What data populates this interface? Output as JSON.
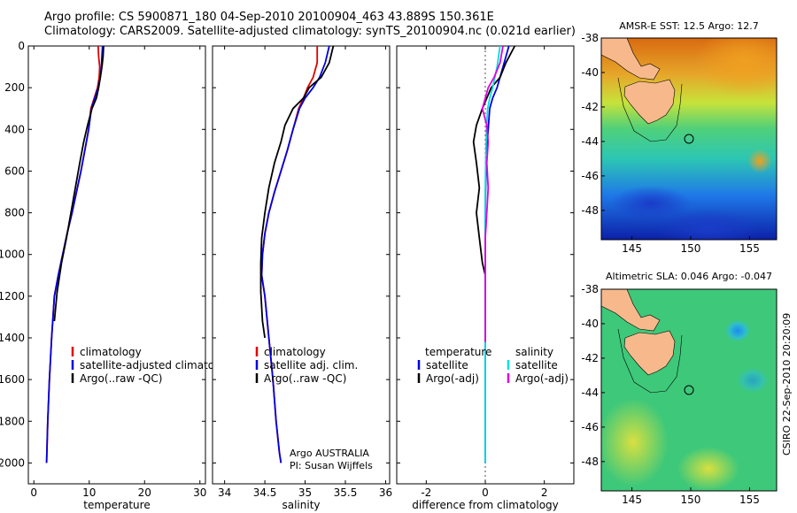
{
  "header": {
    "line1": "Argo profile: CS 5900871_180 04-Sep-2010 20100904_463 43.889S 150.361E",
    "line2": "Climatology: CARS2009. Satellite-adjusted climatology: synTS_20100904.nc (0.021d earlier)"
  },
  "chart_data": [
    {
      "type": "line",
      "panel": "temperature",
      "xlabel": "temperature",
      "ylabel": "",
      "xlim": [
        -1,
        31
      ],
      "ylim": [
        2100,
        0
      ],
      "xticks": [
        0,
        10,
        20,
        30
      ],
      "yticks": [
        0,
        200,
        400,
        600,
        800,
        1000,
        1200,
        1400,
        1600,
        1800,
        2000
      ],
      "legend": [
        "climatology",
        "satellite-adjusted climatology",
        "Argo(..raw -QC)"
      ],
      "series": [
        {
          "name": "climatology",
          "color": "#e00000",
          "x": [
            11.6,
            11.7,
            11.9,
            11.8,
            11.5,
            10.9,
            10.3,
            9.9,
            9.2,
            8.5,
            7.7,
            6.9,
            6.0,
            5.2,
            4.4,
            3.7,
            3.2,
            2.8,
            2.5,
            2.3
          ],
          "y": [
            0,
            50,
            100,
            150,
            200,
            250,
            300,
            400,
            500,
            600,
            700,
            800,
            900,
            1000,
            1100,
            1200,
            1400,
            1600,
            1800,
            2000
          ]
        },
        {
          "name": "satellite-adjusted climatology",
          "color": "#0000e0",
          "x": [
            12.4,
            12.3,
            12.2,
            12.0,
            11.6,
            11.0,
            10.4,
            9.9,
            9.2,
            8.5,
            7.7,
            6.9,
            6.0,
            5.2,
            4.4,
            3.7,
            3.2,
            2.8,
            2.5,
            2.3
          ],
          "y": [
            0,
            50,
            100,
            150,
            200,
            250,
            300,
            400,
            500,
            600,
            700,
            800,
            900,
            1000,
            1100,
            1200,
            1400,
            1600,
            1800,
            2000
          ]
        },
        {
          "name": "Argo(..raw -QC)",
          "color": "#000000",
          "x": [
            12.6,
            12.5,
            12.3,
            12.0,
            11.7,
            11.3,
            10.5,
            9.7,
            9.0,
            8.3,
            7.5,
            6.7,
            5.9,
            5.0,
            4.2,
            3.7
          ],
          "y": [
            0,
            50,
            100,
            150,
            200,
            250,
            300,
            380,
            460,
            560,
            680,
            800,
            920,
            1040,
            1180,
            1320
          ]
        }
      ]
    },
    {
      "type": "line",
      "panel": "salinity",
      "xlabel": "salinity",
      "ylabel": "",
      "xlim": [
        33.85,
        36.05
      ],
      "ylim": [
        2100,
        0
      ],
      "xticks": [
        34,
        34.5,
        35,
        35.5,
        36
      ],
      "xticklabels": [
        "34",
        "34.5",
        "35",
        "35.5",
        "36"
      ],
      "legend": [
        "climatology",
        "satellite adj. clim.",
        "Argo(..raw -QC)"
      ],
      "annotation": [
        "Argo AUSTRALIA",
        "PI: Susan Wijffels"
      ],
      "series": [
        {
          "name": "climatology",
          "color": "#e00000",
          "x": [
            35.15,
            35.15,
            35.1,
            35.03,
            34.98,
            34.92,
            34.85,
            34.78,
            34.7,
            34.62,
            34.55,
            34.5,
            34.47,
            34.46,
            34.5,
            34.55,
            34.6,
            34.64,
            34.68,
            34.7
          ],
          "y": [
            0,
            80,
            150,
            200,
            250,
            300,
            400,
            500,
            600,
            700,
            800,
            900,
            1000,
            1100,
            1200,
            1400,
            1600,
            1800,
            1950,
            2000
          ]
        },
        {
          "name": "satellite adj. clim.",
          "color": "#0000e0",
          "x": [
            35.3,
            35.25,
            35.18,
            35.1,
            35.0,
            34.93,
            34.85,
            34.78,
            34.7,
            34.62,
            34.55,
            34.5,
            34.47,
            34.46,
            34.5,
            34.55,
            34.6,
            34.64,
            34.68,
            34.7
          ],
          "y": [
            0,
            80,
            150,
            200,
            250,
            300,
            400,
            500,
            600,
            700,
            800,
            900,
            1000,
            1100,
            1200,
            1400,
            1600,
            1800,
            1950,
            2000
          ]
        },
        {
          "name": "Argo(..raw -QC)",
          "color": "#000000",
          "x": [
            35.35,
            35.3,
            35.2,
            35.05,
            34.98,
            34.85,
            34.75,
            34.7,
            34.62,
            34.55,
            34.5,
            34.46,
            34.45,
            34.45,
            34.47,
            34.5
          ],
          "y": [
            0,
            80,
            150,
            200,
            250,
            300,
            380,
            460,
            560,
            680,
            800,
            920,
            1040,
            1180,
            1320,
            1400
          ]
        }
      ]
    },
    {
      "type": "line",
      "panel": "difference",
      "xlabel": "difference from climatology",
      "ylabel": "",
      "xlim": [
        -3,
        3
      ],
      "ylim": [
        2100,
        0
      ],
      "xticks": [
        -2,
        0,
        2
      ],
      "legend_left_title": "temperature",
      "legend_right_title": "salinity",
      "legend_left": [
        "satellite",
        "Argo(-adj)"
      ],
      "legend_right": [
        "satellite",
        "Argo(-adj)"
      ],
      "series": [
        {
          "name": "temperature satellite",
          "color": "#0000e0",
          "x": [
            0.8,
            0.6,
            0.4,
            0.25,
            0.15,
            0.1,
            0.05,
            0.02,
            0.01,
            0.0,
            0.0,
            0.0,
            0.0,
            0.0,
            0.0,
            0.0,
            0.0,
            0.0,
            0.0
          ],
          "y": [
            0,
            100,
            200,
            250,
            300,
            400,
            500,
            600,
            700,
            800,
            900,
            1000,
            1100,
            1200,
            1400,
            1600,
            1800,
            1950,
            2000
          ]
        },
        {
          "name": "temperature Argo(-adj)",
          "color": "#000000",
          "x": [
            1.0,
            0.7,
            0.5,
            0.2,
            -0.1,
            -0.3,
            -0.4,
            -0.3,
            -0.2,
            -0.3,
            -0.2,
            -0.1,
            0.0
          ],
          "y": [
            0,
            80,
            150,
            200,
            300,
            380,
            460,
            560,
            680,
            800,
            920,
            1040,
            1100
          ]
        },
        {
          "name": "salinity satellite",
          "color": "#00e0e0",
          "x": [
            0.5,
            0.4,
            0.25,
            0.15,
            0.08,
            0.04,
            0.02,
            0.01,
            0.0,
            0.0,
            0.0,
            0.0,
            0.0,
            0.0,
            0.0,
            0.0,
            0.0,
            0.0
          ],
          "y": [
            0,
            100,
            200,
            250,
            300,
            400,
            500,
            600,
            700,
            800,
            900,
            1000,
            1100,
            1200,
            1400,
            1600,
            1800,
            2000
          ]
        },
        {
          "name": "salinity Argo(-adj)",
          "color": "#e000e0",
          "x": [
            0.6,
            0.5,
            0.3,
            0.1,
            -0.1,
            0.05,
            0.1,
            0.05,
            0.1,
            0.05,
            0.0,
            0.0,
            0.0,
            0.0,
            0.0,
            0.0
          ],
          "y": [
            0,
            80,
            150,
            200,
            300,
            380,
            460,
            560,
            680,
            800,
            920,
            1040,
            1180,
            1320,
            1400,
            1420
          ]
        }
      ]
    }
  ],
  "maps": [
    {
      "title": "AMSR-E SST: 12.5 Argo: 12.7",
      "xticks": [
        "145",
        "150",
        "155"
      ],
      "yticks": [
        "-38",
        "-40",
        "-42",
        "-44",
        "-46",
        "-48"
      ]
    },
    {
      "title": "Altimetric SLA: 0.046 Argo: -0.047",
      "xticks": [
        "145",
        "150",
        "155"
      ],
      "yticks": [
        "-38",
        "-40",
        "-42",
        "-44",
        "-46",
        "-48"
      ]
    }
  ],
  "credit": "CSIRO 22-Sep-2010 20:20:09",
  "colors": {
    "climatology": "#e00000",
    "satellite": "#0000e0",
    "argo": "#000000",
    "salinity_satellite": "#00e0e0",
    "salinity_argo": "#e000e0",
    "land": "#f7b98c"
  }
}
